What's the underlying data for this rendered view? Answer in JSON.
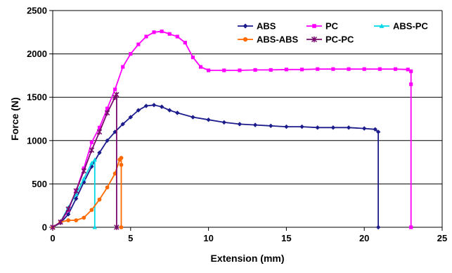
{
  "chart_data": {
    "type": "line",
    "title": "",
    "xlabel": "Extension (mm)",
    "ylabel": "Force (N)",
    "xlim": [
      0,
      25
    ],
    "ylim": [
      0,
      2500
    ],
    "xticks": [
      0,
      5,
      10,
      15,
      20,
      25
    ],
    "yticks": [
      0,
      500,
      1000,
      1500,
      2000,
      2500
    ],
    "grid": "horizontal",
    "legend": "top-right",
    "series": [
      {
        "name": "ABS",
        "color": "#1c1c8c",
        "marker": "diamond",
        "points": [
          [
            0,
            0
          ],
          [
            0.5,
            50
          ],
          [
            1,
            150
          ],
          [
            1.5,
            330
          ],
          [
            2,
            520
          ],
          [
            2.5,
            700
          ],
          [
            3,
            860
          ],
          [
            3.5,
            1000
          ],
          [
            4,
            1100
          ],
          [
            4.5,
            1190
          ],
          [
            5,
            1270
          ],
          [
            5.5,
            1350
          ],
          [
            6,
            1400
          ],
          [
            6.5,
            1410
          ],
          [
            7,
            1390
          ],
          [
            7.5,
            1350
          ],
          [
            8,
            1320
          ],
          [
            9,
            1270
          ],
          [
            10,
            1240
          ],
          [
            11,
            1210
          ],
          [
            12,
            1190
          ],
          [
            13,
            1180
          ],
          [
            14,
            1170
          ],
          [
            15,
            1160
          ],
          [
            16,
            1160
          ],
          [
            17,
            1150
          ],
          [
            18,
            1150
          ],
          [
            19,
            1150
          ],
          [
            20,
            1140
          ],
          [
            20.7,
            1130
          ],
          [
            20.9,
            1100
          ],
          [
            20.9,
            0
          ]
        ]
      },
      {
        "name": "PC",
        "color": "#ff00ff",
        "marker": "square",
        "points": [
          [
            0,
            0
          ],
          [
            0.5,
            60
          ],
          [
            1,
            200
          ],
          [
            1.5,
            420
          ],
          [
            2,
            680
          ],
          [
            2.5,
            980
          ],
          [
            3,
            1150
          ],
          [
            3.5,
            1370
          ],
          [
            4,
            1590
          ],
          [
            4.5,
            1850
          ],
          [
            5,
            2000
          ],
          [
            5.5,
            2110
          ],
          [
            6,
            2200
          ],
          [
            6.5,
            2250
          ],
          [
            7,
            2260
          ],
          [
            7.5,
            2230
          ],
          [
            8,
            2200
          ],
          [
            8.5,
            2130
          ],
          [
            9,
            1960
          ],
          [
            9.5,
            1850
          ],
          [
            10,
            1810
          ],
          [
            11,
            1810
          ],
          [
            12,
            1810
          ],
          [
            13,
            1815
          ],
          [
            14,
            1815
          ],
          [
            15,
            1820
          ],
          [
            16,
            1820
          ],
          [
            17,
            1825
          ],
          [
            18,
            1825
          ],
          [
            19,
            1825
          ],
          [
            20,
            1825
          ],
          [
            21,
            1825
          ],
          [
            22,
            1825
          ],
          [
            22.8,
            1820
          ],
          [
            23,
            1800
          ],
          [
            23,
            1650
          ],
          [
            23,
            0
          ]
        ]
      },
      {
        "name": "ABS-PC",
        "color": "#00d8e8",
        "marker": "triangle",
        "points": [
          [
            0,
            0
          ],
          [
            0.5,
            60
          ],
          [
            1,
            230
          ],
          [
            1.5,
            380
          ],
          [
            2,
            560
          ],
          [
            2.5,
            740
          ],
          [
            2.7,
            780
          ],
          [
            2.7,
            0
          ]
        ]
      },
      {
        "name": "ABS-ABS",
        "color": "#ff6a00",
        "marker": "circle",
        "points": [
          [
            0,
            0
          ],
          [
            0.5,
            60
          ],
          [
            1,
            80
          ],
          [
            1.5,
            80
          ],
          [
            2,
            110
          ],
          [
            2.5,
            200
          ],
          [
            3,
            320
          ],
          [
            3.5,
            460
          ],
          [
            4,
            620
          ],
          [
            4.3,
            780
          ],
          [
            4.4,
            800
          ],
          [
            4.4,
            720
          ],
          [
            4.4,
            0
          ]
        ]
      },
      {
        "name": "PC-PC",
        "color": "#7a0a6e",
        "marker": "star",
        "points": [
          [
            0,
            0
          ],
          [
            0.5,
            60
          ],
          [
            1,
            210
          ],
          [
            1.5,
            420
          ],
          [
            2,
            650
          ],
          [
            2.5,
            890
          ],
          [
            3,
            1100
          ],
          [
            3.5,
            1320
          ],
          [
            4,
            1500
          ],
          [
            4.1,
            1530
          ],
          [
            4.1,
            0
          ]
        ]
      }
    ]
  }
}
